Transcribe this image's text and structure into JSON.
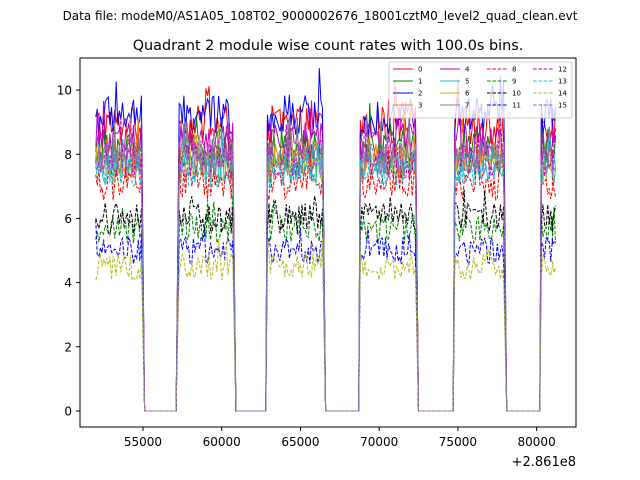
{
  "suptitle": "Data file: modeM0/AS1A05_108T02_9000002676_18001cztM0_level2_quad_clean.evt",
  "chart_data": {
    "type": "line",
    "title": "Quadrant 2 module wise count rates with 100.0s bins.",
    "xlabel": "",
    "ylabel": "",
    "x_offset_text": "+2.861e8",
    "xlim": [
      51000,
      82500
    ],
    "ylim": [
      -0.5,
      11.0
    ],
    "xticks": [
      55000,
      60000,
      65000,
      70000,
      75000,
      80000
    ],
    "xtick_labels": [
      "55000",
      "60000",
      "65000",
      "70000",
      "75000",
      "80000"
    ],
    "yticks": [
      0,
      2,
      4,
      6,
      8,
      10
    ],
    "ytick_labels": [
      "0",
      "2",
      "4",
      "6",
      "8",
      "10"
    ],
    "grid": false,
    "legend_position": "top-right",
    "on_intervals": [
      [
        52000,
        54900
      ],
      [
        57300,
        60700
      ],
      [
        62900,
        63400
      ],
      [
        63700,
        66400
      ],
      [
        68800,
        69500
      ],
      [
        69800,
        72300
      ],
      [
        74800,
        75800
      ],
      [
        76000,
        77900
      ],
      [
        80300,
        81000
      ],
      [
        81000,
        81200
      ]
    ],
    "zero_intervals": [
      [
        55100,
        57100
      ],
      [
        60900,
        62800
      ],
      [
        66600,
        68700
      ],
      [
        72500,
        74700
      ],
      [
        78100,
        80200
      ]
    ],
    "bin_width_s": 100.0,
    "series": [
      {
        "name": "0",
        "color": "#ff0000",
        "style": "solid",
        "level": 8.9
      },
      {
        "name": "1",
        "color": "#008000",
        "style": "solid",
        "level": 8.2
      },
      {
        "name": "2",
        "color": "#0000ff",
        "style": "solid",
        "level": 9.2
      },
      {
        "name": "3",
        "color": "#ff7f0e",
        "style": "solid",
        "level": 7.9
      },
      {
        "name": "4",
        "color": "#bf00bf",
        "style": "solid",
        "level": 8.4
      },
      {
        "name": "5",
        "color": "#17becf",
        "style": "solid",
        "level": 7.6
      },
      {
        "name": "6",
        "color": "#bcbd22",
        "style": "solid",
        "level": 7.7
      },
      {
        "name": "7",
        "color": "#7f7f7f",
        "style": "solid",
        "level": 7.9
      },
      {
        "name": "8",
        "color": "#ff0000",
        "style": "dashed",
        "level": 7.1
      },
      {
        "name": "9",
        "color": "#008000",
        "style": "dashed",
        "level": 5.7
      },
      {
        "name": "10",
        "color": "#000000",
        "style": "dashed",
        "level": 6.0
      },
      {
        "name": "11",
        "color": "#0000ff",
        "style": "dashed",
        "level": 5.0
      },
      {
        "name": "12",
        "color": "#bf00bf",
        "style": "dashed",
        "level": 7.8
      },
      {
        "name": "13",
        "color": "#17becf",
        "style": "dashed",
        "level": 7.5
      },
      {
        "name": "14",
        "color": "#bcbd22",
        "style": "dashed",
        "level": 4.5
      },
      {
        "name": "15",
        "color": "#9467bd",
        "style": "dashed",
        "level": 7.9
      }
    ]
  }
}
